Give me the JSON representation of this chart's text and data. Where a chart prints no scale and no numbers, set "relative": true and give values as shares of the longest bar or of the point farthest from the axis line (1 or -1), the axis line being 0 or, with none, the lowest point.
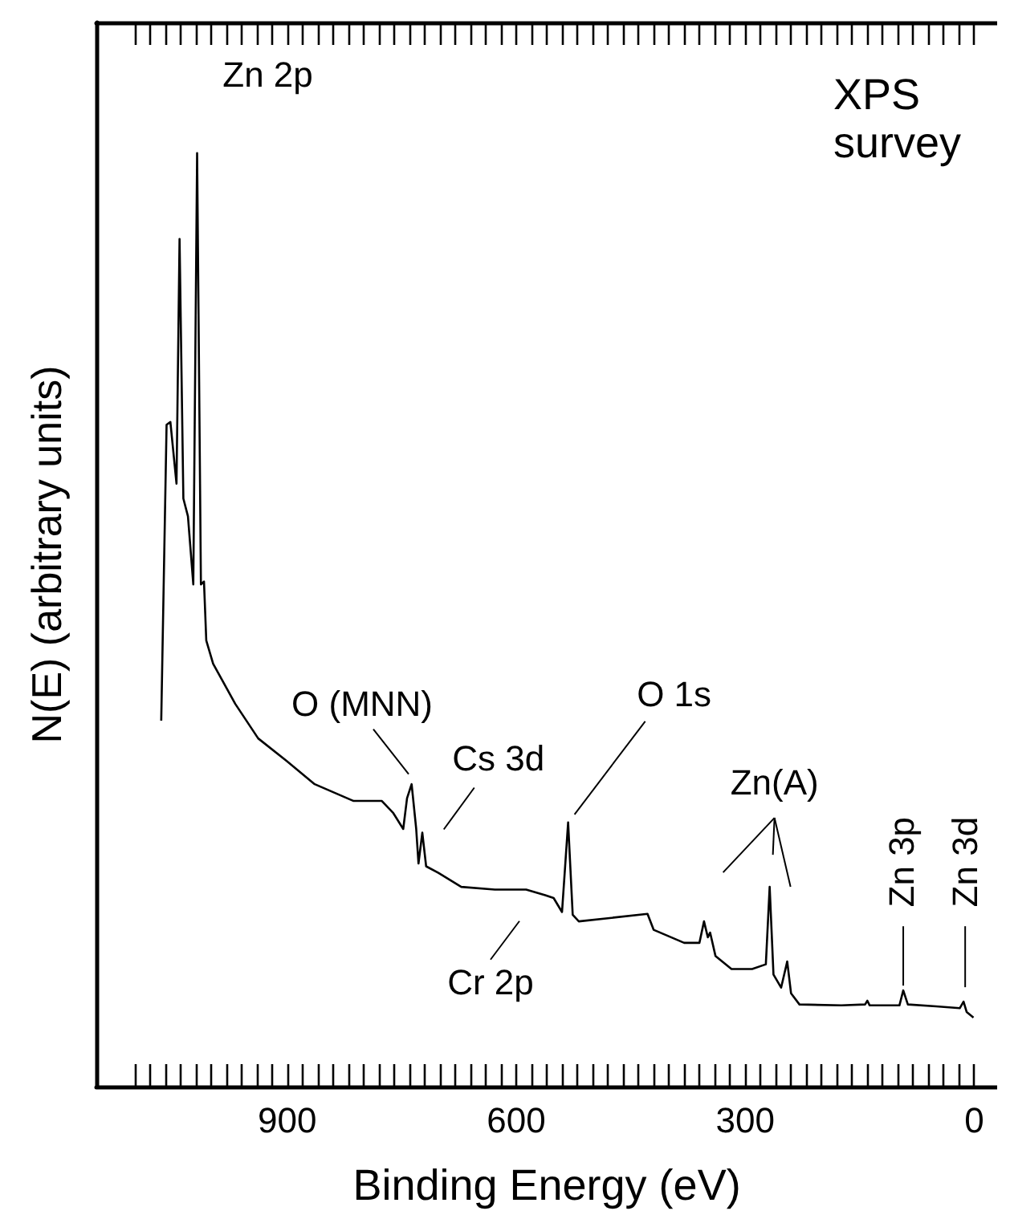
{
  "chart_data": {
    "type": "line",
    "relative": true,
    "xlabel": "Binding Energy (eV)",
    "ylabel": "N(E) (arbitrary units)",
    "color": "#000000",
    "grid": false,
    "tick_labels": "x",
    "xlim": [
      1150,
      -30
    ],
    "xticks": [
      {
        "value": 1100,
        "label": null
      },
      {
        "value": 1000,
        "label": null
      },
      900,
      {
        "value": 800,
        "label": null
      },
      {
        "value": 700,
        "label": null
      },
      600,
      {
        "value": 500,
        "label": null
      },
      {
        "value": 400,
        "label": null
      },
      300,
      {
        "value": 200,
        "label": null
      },
      {
        "value": 100,
        "label": null
      },
      0
    ],
    "x": [
      1065,
      1058,
      1053,
      1045,
      1041,
      1036,
      1030,
      1023,
      1018,
      1013,
      1009,
      1006,
      997,
      968,
      938,
      901,
      864,
      813,
      776,
      761,
      748,
      743,
      737,
      731,
      728,
      723,
      718,
      702,
      672,
      628,
      587,
      562,
      551,
      540,
      532,
      526,
      518,
      428,
      420,
      380,
      360,
      354,
      349,
      346,
      339,
      318,
      291,
      273,
      268,
      263,
      253,
      245,
      240,
      229,
      174,
      143,
      140,
      137,
      98,
      93,
      87,
      50,
      19,
      14,
      10,
      1
    ],
    "values": [
      0.392,
      0.709,
      0.712,
      0.646,
      0.908,
      0.63,
      0.611,
      0.538,
      1,
      0.538,
      0.541,
      0.478,
      0.453,
      0.41,
      0.373,
      0.349,
      0.324,
      0.306,
      0.306,
      0.293,
      0.276,
      0.309,
      0.324,
      0.276,
      0.239,
      0.272,
      0.236,
      0.229,
      0.214,
      0.211,
      0.211,
      0.205,
      0.202,
      0.187,
      0.283,
      0.184,
      0.177,
      0.185,
      0.168,
      0.154,
      0.154,
      0.177,
      0.16,
      0.165,
      0.14,
      0.126,
      0.126,
      0.131,
      0.214,
      0.12,
      0.106,
      0.134,
      0.1,
      0.088,
      0.087,
      0.088,
      0.092,
      0.087,
      0.087,
      0.103,
      0.088,
      0.086,
      0.084,
      0.091,
      0.08,
      0.074
    ],
    "annotations": [
      {
        "text": "Zn 2p",
        "x": 1018,
        "y": 1
      },
      {
        "text": "O (MNN)",
        "x": 743,
        "y": 0.309
      },
      {
        "text": "Cs 3d",
        "x": 718,
        "y": 0.236
      },
      {
        "text": "Cr 2p",
        "x": 600,
        "y": 0.21
      },
      {
        "text": "O 1s",
        "x": 532,
        "y": 0.283
      },
      {
        "text": "Zn(A)",
        "x": 268,
        "y": 0.214
      },
      {
        "text": "Zn 3p",
        "x": 93,
        "y": 0.103
      },
      {
        "text": "Zn 3d",
        "x": 14,
        "y": 0.091
      },
      "XPS survey"
    ]
  }
}
